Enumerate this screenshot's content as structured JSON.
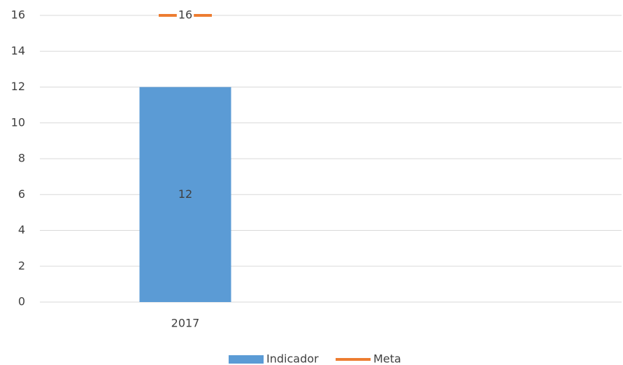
{
  "chart_data": {
    "type": "bar",
    "categories": [
      "2017",
      null
    ],
    "series": [
      {
        "name": "Indicador",
        "type": "bar",
        "color": "#5b9bd5",
        "values": [
          12,
          null
        ]
      },
      {
        "name": "Meta",
        "type": "marker",
        "color": "#ed7d31",
        "values": [
          16,
          null
        ]
      }
    ],
    "ylim": [
      0,
      16
    ],
    "yticks": [
      0,
      2,
      4,
      6,
      8,
      10,
      12,
      14,
      16
    ],
    "grid": true,
    "legend": "bottom"
  }
}
